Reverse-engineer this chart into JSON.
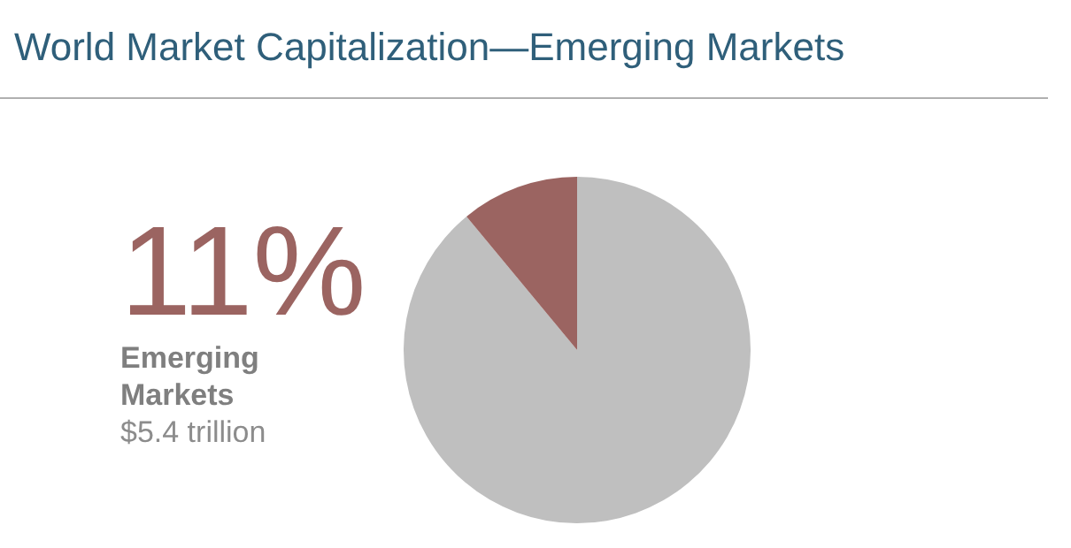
{
  "chart_data": {
    "type": "pie",
    "title": "World Market Capitalization—Emerging Markets",
    "categories": [
      null,
      null
    ],
    "values": [
      89,
      11
    ],
    "colors": [
      "#bfbfbf",
      "#9b6461"
    ],
    "annotations": [
      "11%",
      "Emerging Markets",
      "$5.4 trillion"
    ],
    "legend": false
  }
}
